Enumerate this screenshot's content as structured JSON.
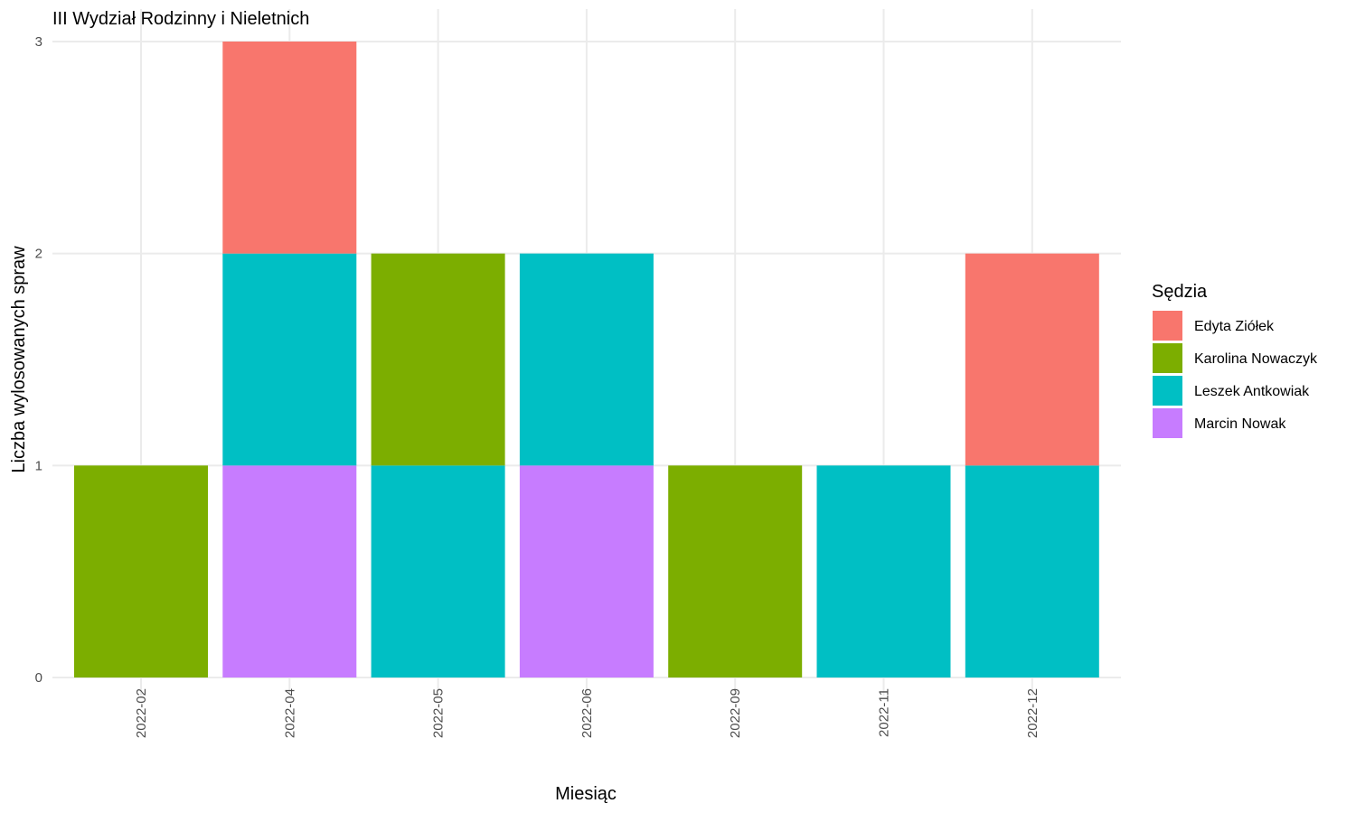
{
  "chart_data": {
    "type": "bar",
    "stacked": true,
    "title": "III Wydział Rodzinny i Nieletnich",
    "xlabel": "Miesiąc",
    "ylabel": "Liczba wylosowanych spraw",
    "categories": [
      "2022-02",
      "2022-04",
      "2022-05",
      "2022-06",
      "2022-09",
      "2022-11",
      "2022-12"
    ],
    "ylim": [
      0,
      3
    ],
    "yticks": [
      0,
      1,
      2,
      3
    ],
    "grid": true,
    "legend": {
      "title": "Sędzia",
      "placement": "right"
    },
    "series": [
      {
        "name": "Edyta Ziółek",
        "color": "#F8766D",
        "values": [
          0,
          1,
          0,
          0,
          0,
          0,
          1
        ]
      },
      {
        "name": "Karolina Nowaczyk",
        "color": "#7CAE00",
        "values": [
          1,
          0,
          1,
          0,
          1,
          0,
          0
        ]
      },
      {
        "name": "Leszek Antkowiak",
        "color": "#00BFC4",
        "values": [
          0,
          1,
          1,
          1,
          0,
          1,
          1
        ]
      },
      {
        "name": "Marcin Nowak",
        "color": "#C77CFF",
        "values": [
          0,
          1,
          0,
          1,
          0,
          0,
          0
        ]
      }
    ]
  }
}
